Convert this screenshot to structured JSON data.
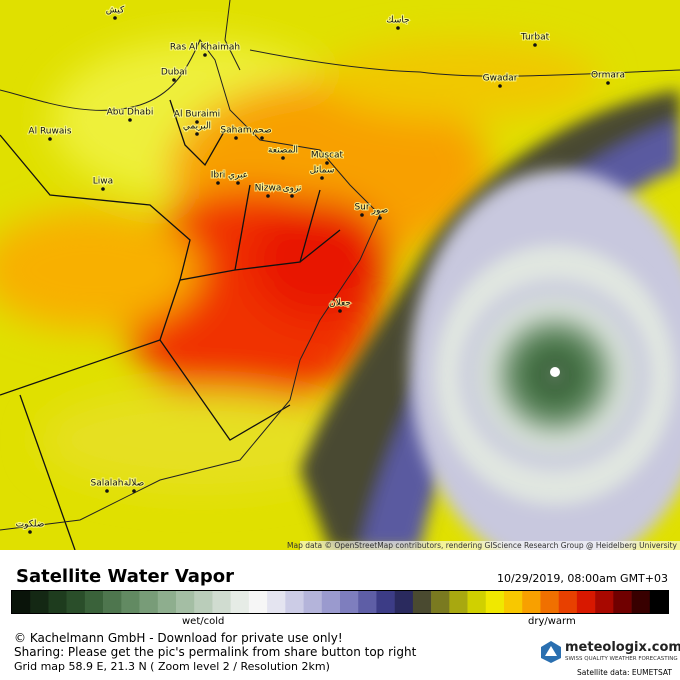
{
  "map": {
    "places": [
      "Ras Al Khaimah",
      "Dubai",
      "Abu Dhabi",
      "Al Buraimi",
      "البريمي",
      "Al Ruwais",
      "Saham",
      "صحم",
      "المصنعة",
      "Muscat",
      "سمائل",
      "Ibri",
      "عبري",
      "Nizwa",
      "نزوى",
      "Liwa",
      "Sur",
      "صور",
      "جعلان",
      "Salalah",
      "صلالة",
      "ضلكوت",
      "Turbat",
      "Gwadar",
      "Ormara",
      "جاسك",
      "كيش"
    ],
    "attribution": "Map data © OpenStreetMap contributors, rendering GIScience Research Group @ Heidelberg University"
  },
  "footer": {
    "title": "Satellite Water Vapor",
    "datetime": "10/29/2019, 08:00am GMT+03",
    "legend_left": "wet/cold",
    "legend_right": "dry/warm",
    "colorbar": [
      "#0a140a",
      "#142814",
      "#1e3c1e",
      "#2a4e2a",
      "#3a623a",
      "#4e764e",
      "#628a62",
      "#789c78",
      "#8eae8e",
      "#a4bea4",
      "#bacdba",
      "#d0dcd0",
      "#e6ece6",
      "#f6f6f6",
      "#e4e4f0",
      "#cccce6",
      "#b4b4da",
      "#9a9ace",
      "#7e7ebe",
      "#5e5ea6",
      "#3c3c86",
      "#2a2a5e",
      "#4a4a30",
      "#7a7a20",
      "#a8a810",
      "#d0d000",
      "#f0e800",
      "#f8c800",
      "#f8a000",
      "#f07000",
      "#e84000",
      "#d81800",
      "#a80800",
      "#700000",
      "#380000",
      "#000000"
    ],
    "copyright": "© Kachelmann GmbH - Download for private use only!",
    "sharing": "Sharing: Please get the pic's permalink from share button top right",
    "grid": "Grid map 58.9 E, 21.3 N ( Zoom level 2 / Resolution 2km)",
    "brand": "meteologix.com",
    "tagline": "SWISS QUALITY WEATHER FORECASTING",
    "source": "Satellite data: EUMETSAT"
  }
}
